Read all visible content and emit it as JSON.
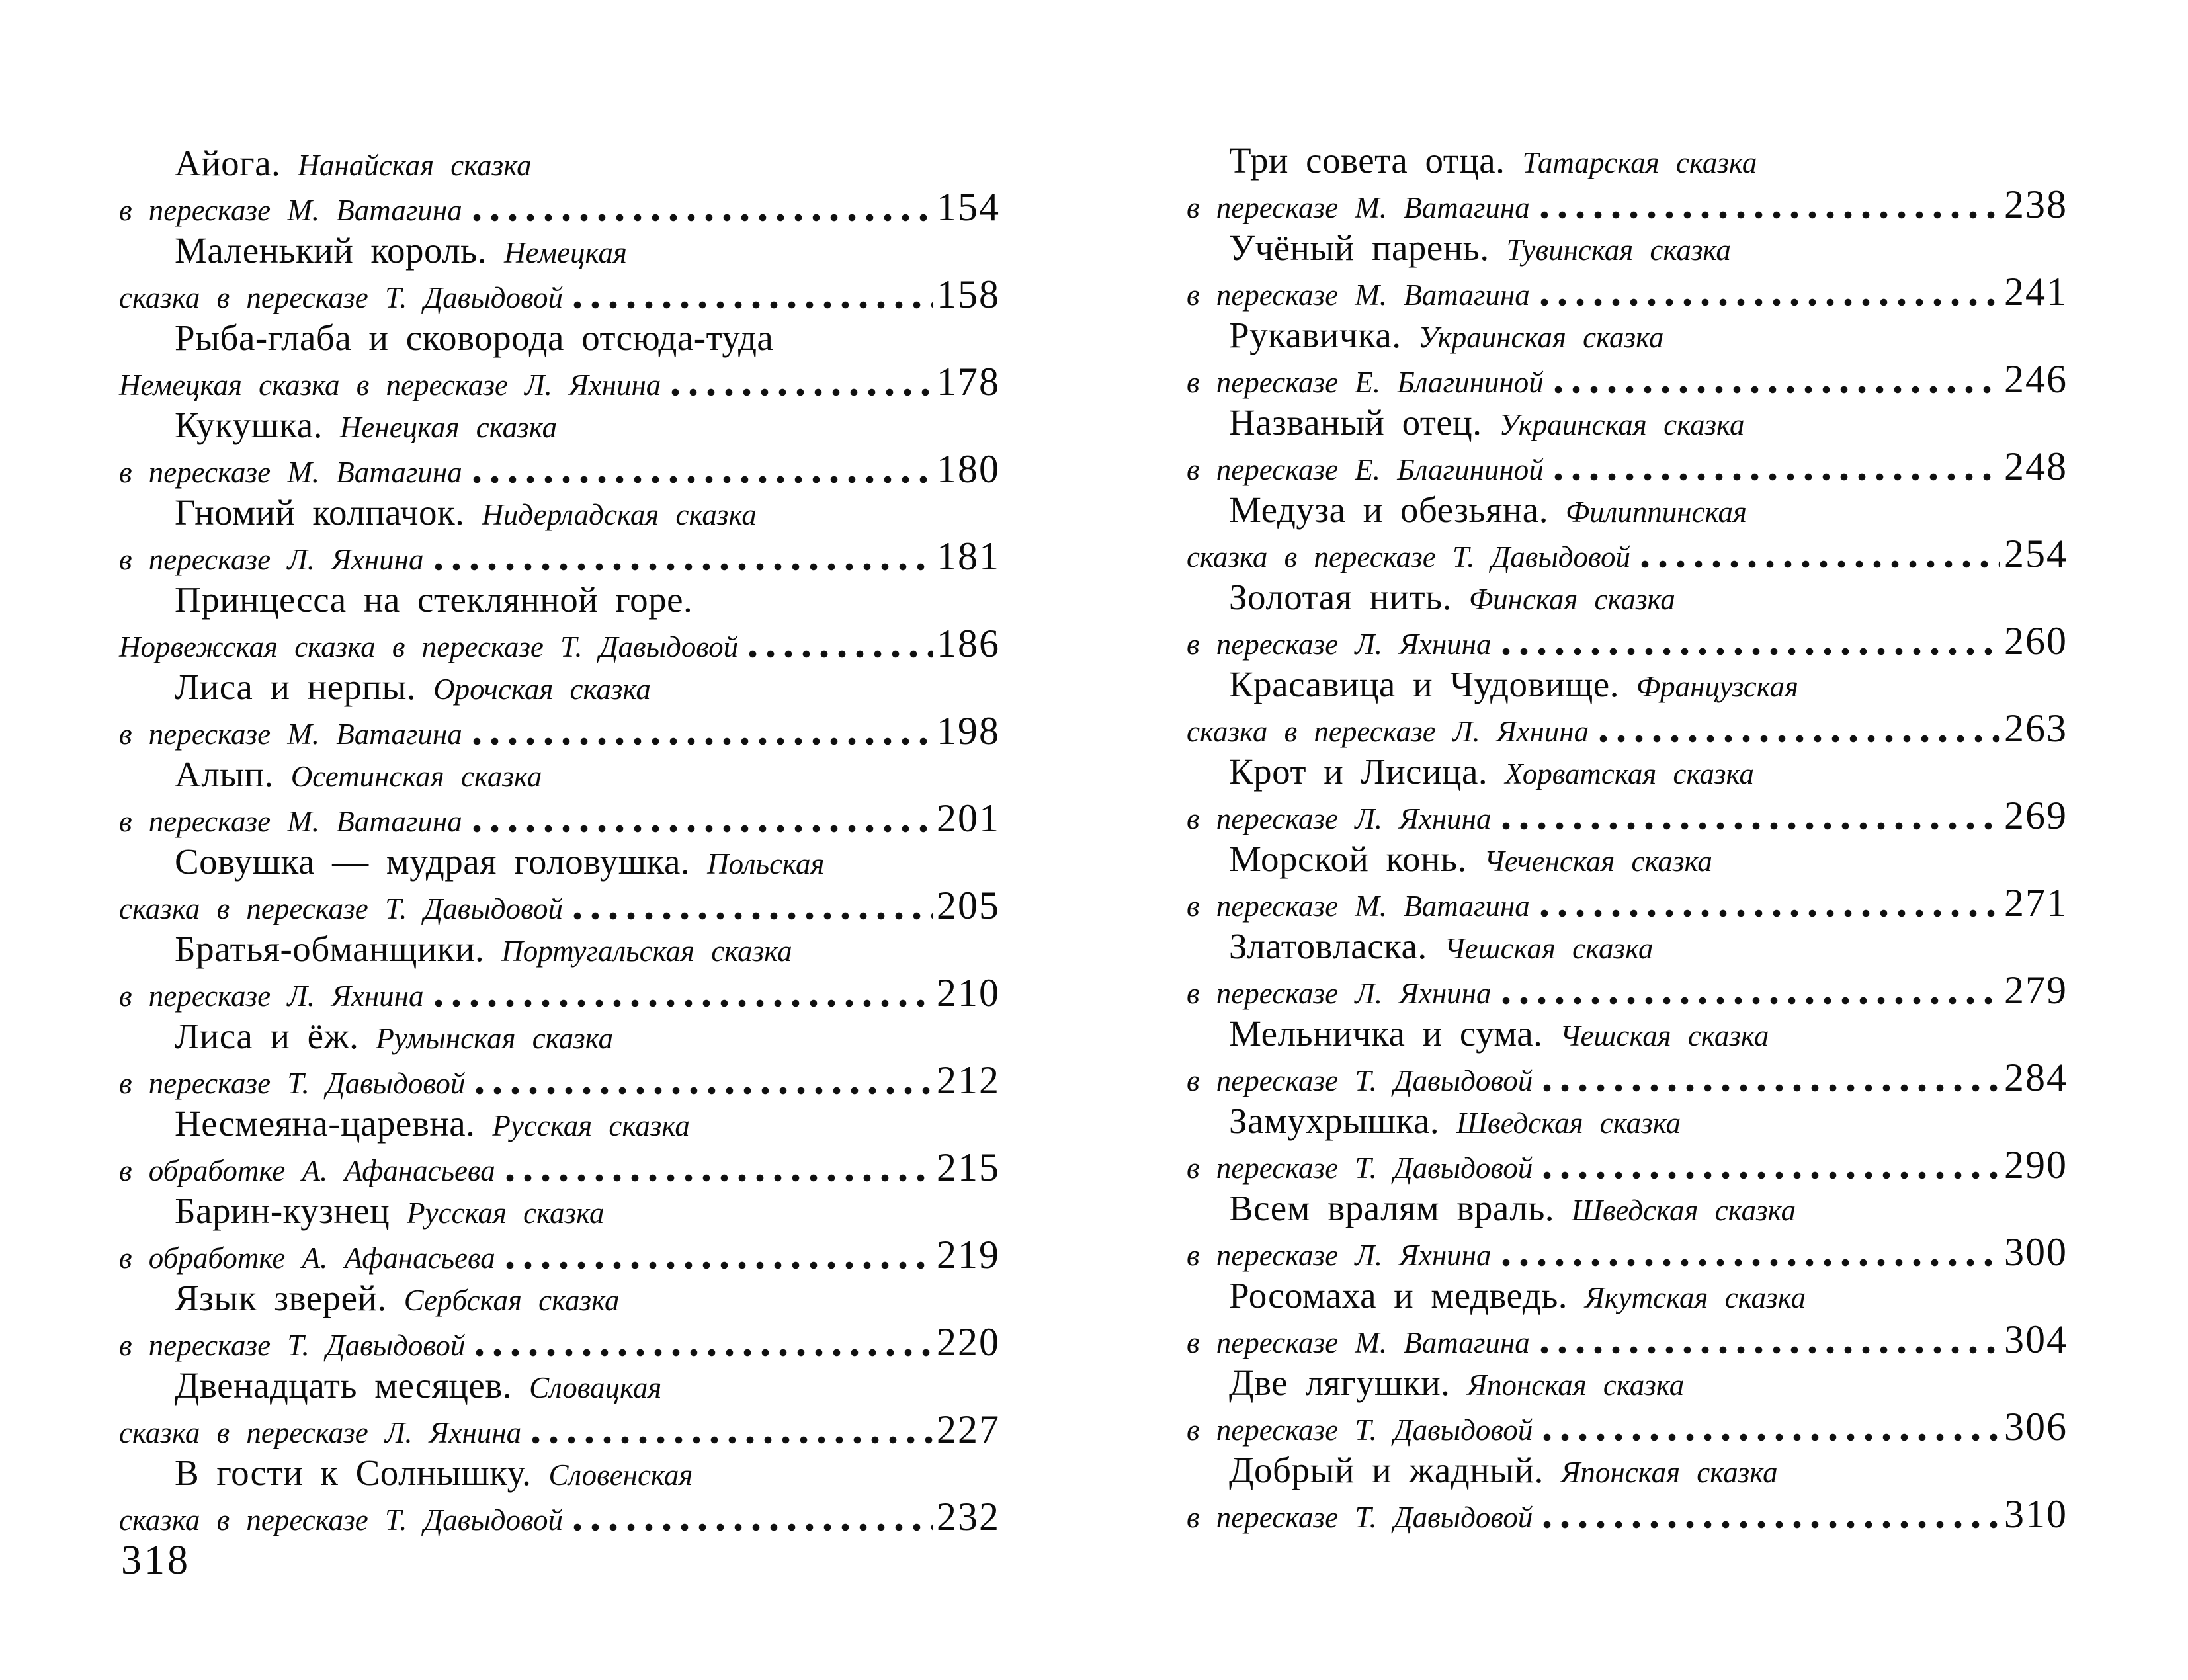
{
  "page": {
    "footer_page_number": "318"
  },
  "toc": {
    "left": [
      {
        "title": "Айога.",
        "subtitle_line1": "Нанайская сказка",
        "subtitle_line2": "в пересказе М. Ватагина",
        "page": "154"
      },
      {
        "title": "Маленький король.",
        "subtitle_line1": "Немецкая",
        "subtitle_line2": "сказка в пересказе Т. Давыдовой",
        "page": "158"
      },
      {
        "title": "Рыба-глаба и сковорода отсюда-туда",
        "subtitle_line1": "",
        "subtitle_line2": "Немецкая сказка в пересказе Л. Яхнина",
        "page": "178"
      },
      {
        "title": "Кукушка.",
        "subtitle_line1": "Ненецкая сказка",
        "subtitle_line2": "в пересказе М. Ватагина",
        "page": "180"
      },
      {
        "title": "Гномий колпачок.",
        "subtitle_line1": "Нидерладская сказка",
        "subtitle_line2": "в пересказе Л. Яхнина",
        "page": "181"
      },
      {
        "title": "Принцесса на стеклянной горе.",
        "subtitle_line1": "",
        "subtitle_line2": "Норвежская сказка в пересказе Т. Давыдовой",
        "page": "186"
      },
      {
        "title": "Лиса и нерпы.",
        "subtitle_line1": "Орочская сказка",
        "subtitle_line2": "в пересказе М. Ватагина",
        "page": "198"
      },
      {
        "title": "Алып.",
        "subtitle_line1": "Осетинская сказка",
        "subtitle_line2": "в пересказе М. Ватагина",
        "page": "201"
      },
      {
        "title": "Совушка — мудрая головушка.",
        "subtitle_line1": "Польская",
        "subtitle_line2": "сказка в пересказе Т. Давыдовой",
        "page": "205"
      },
      {
        "title": "Братья-обманщики.",
        "subtitle_line1": "Португальская сказка",
        "subtitle_line2": "в пересказе Л. Яхнина",
        "page": "210"
      },
      {
        "title": "Лиса и ёж.",
        "subtitle_line1": "Румынская сказка",
        "subtitle_line2": "в пересказе Т. Давыдовой",
        "page": "212"
      },
      {
        "title": "Несмеяна-царевна.",
        "subtitle_line1": "Русская сказка",
        "subtitle_line2": "в обработке А. Афанасьева",
        "page": "215"
      },
      {
        "title": "Барин-кузнец",
        "subtitle_line1": "Русская сказка",
        "subtitle_line2": "в обработке А. Афанасьева",
        "page": "219"
      },
      {
        "title": "Язык зверей.",
        "subtitle_line1": "Сербская сказка",
        "subtitle_line2": "в пересказе Т. Давыдовой",
        "page": "220"
      },
      {
        "title": "Двенадцать месяцев.",
        "subtitle_line1": "Словацкая",
        "subtitle_line2": "сказка в пересказе Л. Яхнина",
        "page": "227"
      },
      {
        "title": "В гости к Солнышку.",
        "subtitle_line1": "Словенская",
        "subtitle_line2": "сказка в пересказе Т. Давыдовой",
        "page": "232"
      }
    ],
    "right": [
      {
        "title": "Три совета отца.",
        "subtitle_line1": "Татарская сказка",
        "subtitle_line2": "в пересказе М. Ватагина",
        "page": "238"
      },
      {
        "title": "Учёный парень.",
        "subtitle_line1": "Тувинская сказка",
        "subtitle_line2": "в пересказе М. Ватагина",
        "page": "241"
      },
      {
        "title": "Рукавичка.",
        "subtitle_line1": "Украинская сказка",
        "subtitle_line2": "в пересказе Е. Благининой",
        "page": "246"
      },
      {
        "title": "Названый отец.",
        "subtitle_line1": "Украинская сказка",
        "subtitle_line2": "в пересказе Е. Благининой",
        "page": "248"
      },
      {
        "title": "Медуза и обезьяна.",
        "subtitle_line1": "Филиппинская",
        "subtitle_line2": "сказка в пересказе Т. Давыдовой",
        "page": "254"
      },
      {
        "title": "Золотая нить.",
        "subtitle_line1": "Финская сказка",
        "subtitle_line2": "в пересказе Л. Яхнина",
        "page": "260"
      },
      {
        "title": "Красавица и Чудовище.",
        "subtitle_line1": "Французская",
        "subtitle_line2": "сказка в пересказе Л. Яхнина",
        "page": "263"
      },
      {
        "title": "Крот и Лисица.",
        "subtitle_line1": "Хорватская сказка",
        "subtitle_line2": "в пересказе Л. Яхнина",
        "page": "269"
      },
      {
        "title": "Морской конь.",
        "subtitle_line1": "Чеченская сказка",
        "subtitle_line2": "в пересказе М. Ватагина",
        "page": "271"
      },
      {
        "title": "Златовласка.",
        "subtitle_line1": "Чешская сказка",
        "subtitle_line2": "в пересказе Л. Яхнина",
        "page": "279"
      },
      {
        "title": "Мельничка и сума.",
        "subtitle_line1": "Чешская сказка",
        "subtitle_line2": "в пересказе Т. Давыдовой",
        "page": "284"
      },
      {
        "title": "Замухрышка.",
        "subtitle_line1": "Шведская сказка",
        "subtitle_line2": "в пересказе Т. Давыдовой",
        "page": "290"
      },
      {
        "title": "Всем вралям враль.",
        "subtitle_line1": "Шведская сказка",
        "subtitle_line2": "в пересказе Л. Яхнина",
        "page": "300"
      },
      {
        "title": "Росомаха и медведь.",
        "subtitle_line1": "Якутская сказка",
        "subtitle_line2": "в пересказе М. Ватагина",
        "page": "304"
      },
      {
        "title": "Две лягушки.",
        "subtitle_line1": "Японская сказка",
        "subtitle_line2": "в пересказе Т. Давыдовой",
        "page": "306"
      },
      {
        "title": "Добрый и жадный.",
        "subtitle_line1": "Японская сказка",
        "subtitle_line2": "в пересказе Т. Давыдовой",
        "page": "310"
      }
    ]
  }
}
